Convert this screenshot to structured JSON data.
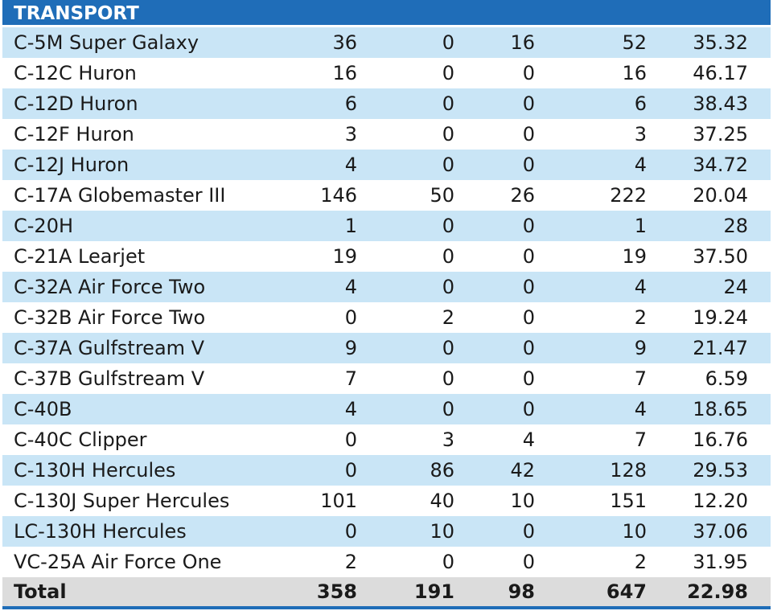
{
  "section_title": "TRANSPORT",
  "rows": [
    {
      "name": "C-5M Super Galaxy",
      "v1": "36",
      "v2": "0",
      "v3": "16",
      "v4": "52",
      "v5": "35.32"
    },
    {
      "name": "C-12C Huron",
      "v1": "16",
      "v2": "0",
      "v3": "0",
      "v4": "16",
      "v5": "46.17"
    },
    {
      "name": "C-12D Huron",
      "v1": "6",
      "v2": "0",
      "v3": "0",
      "v4": "6",
      "v5": "38.43"
    },
    {
      "name": "C-12F Huron",
      "v1": "3",
      "v2": "0",
      "v3": "0",
      "v4": "3",
      "v5": "37.25"
    },
    {
      "name": "C-12J Huron",
      "v1": "4",
      "v2": "0",
      "v3": "0",
      "v4": "4",
      "v5": "34.72"
    },
    {
      "name": "C-17A Globemaster III",
      "v1": "146",
      "v2": "50",
      "v3": "26",
      "v4": "222",
      "v5": "20.04"
    },
    {
      "name": "C-20H",
      "v1": "1",
      "v2": "0",
      "v3": "0",
      "v4": "1",
      "v5": "28"
    },
    {
      "name": "C-21A Learjet",
      "v1": "19",
      "v2": "0",
      "v3": "0",
      "v4": "19",
      "v5": "37.50"
    },
    {
      "name": "C-32A Air Force Two",
      "v1": "4",
      "v2": "0",
      "v3": "0",
      "v4": "4",
      "v5": "24"
    },
    {
      "name": "C-32B Air Force Two",
      "v1": "0",
      "v2": "2",
      "v3": "0",
      "v4": "2",
      "v5": "19.24"
    },
    {
      "name": "C-37A Gulfstream V",
      "v1": "9",
      "v2": "0",
      "v3": "0",
      "v4": "9",
      "v5": "21.47"
    },
    {
      "name": "C-37B Gulfstream V",
      "v1": "7",
      "v2": "0",
      "v3": "0",
      "v4": "7",
      "v5": "6.59"
    },
    {
      "name": "C-40B",
      "v1": "4",
      "v2": "0",
      "v3": "0",
      "v4": "4",
      "v5": "18.65"
    },
    {
      "name": "C-40C Clipper",
      "v1": "0",
      "v2": "3",
      "v3": "4",
      "v4": "7",
      "v5": "16.76"
    },
    {
      "name": "C-130H Hercules",
      "v1": "0",
      "v2": "86",
      "v3": "42",
      "v4": "128",
      "v5": "29.53"
    },
    {
      "name": "C-130J Super Hercules",
      "v1": "101",
      "v2": "40",
      "v3": "10",
      "v4": "151",
      "v5": "12.20"
    },
    {
      "name": "LC-130H Hercules",
      "v1": "0",
      "v2": "10",
      "v3": "0",
      "v4": "10",
      "v5": "37.06"
    },
    {
      "name": "VC-25A Air Force One",
      "v1": "2",
      "v2": "0",
      "v3": "0",
      "v4": "2",
      "v5": "31.95"
    }
  ],
  "total": {
    "name": "Total",
    "v1": "358",
    "v2": "191",
    "v3": "98",
    "v4": "647",
    "v5": "22.98"
  },
  "colors": {
    "header": "#1f6db8",
    "stripe": "#c9e5f6",
    "total_bg": "#dcdcdc"
  }
}
